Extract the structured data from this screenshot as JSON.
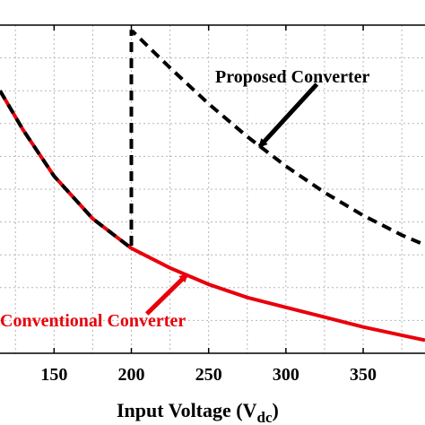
{
  "chart_data": {
    "type": "line",
    "title": "",
    "xlabel": "Input Voltage (V",
    "xlabel_subscript": "dc",
    "xlabel_close": ")",
    "ylabel": "",
    "xlim": [
      115,
      390
    ],
    "ylim": [
      0,
      1.0
    ],
    "xticks": [
      150,
      200,
      250,
      300,
      350
    ],
    "grid": true,
    "series": [
      {
        "name": "Conventional Converter",
        "color": "#e8000b",
        "style": "solid",
        "x": [
          115,
          130,
          150,
          175,
          200,
          225,
          250,
          275,
          300,
          325,
          350,
          375,
          390
        ],
        "y": [
          0.8,
          0.68,
          0.54,
          0.41,
          0.32,
          0.26,
          0.21,
          0.17,
          0.14,
          0.11,
          0.08,
          0.055,
          0.04
        ]
      },
      {
        "name": "Proposed Converter",
        "color": "#000000",
        "style": "dashed",
        "x": [
          115,
          130,
          150,
          175,
          200,
          200,
          201,
          225,
          250,
          275,
          300,
          325,
          350,
          375,
          390
        ],
        "y": [
          0.8,
          0.68,
          0.54,
          0.41,
          0.32,
          0.98,
          0.98,
          0.87,
          0.76,
          0.66,
          0.57,
          0.49,
          0.42,
          0.36,
          0.33
        ]
      }
    ],
    "annotations": [
      {
        "text": "Proposed Converter",
        "color": "#000000",
        "arrow_to": [
          283,
          0.63
        ],
        "arrow_from": [
          320,
          0.82
        ]
      },
      {
        "text": "Conventional Converter",
        "color": "#e8000b",
        "arrow_to": [
          236,
          0.24
        ],
        "arrow_from": [
          210,
          0.12
        ]
      }
    ]
  }
}
